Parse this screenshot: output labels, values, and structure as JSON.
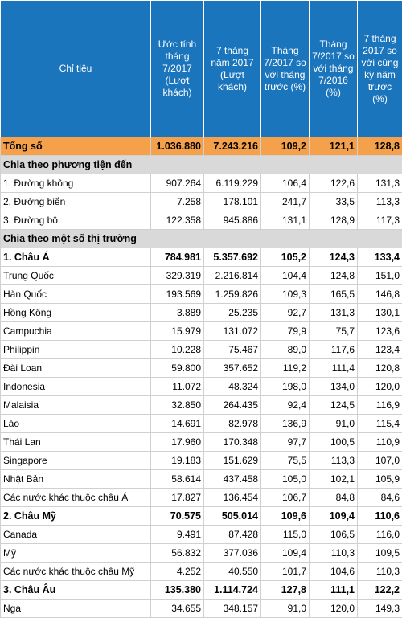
{
  "table": {
    "headers": [
      "Chỉ tiêu",
      "Ước tính tháng 7/2017 (Lượt khách)",
      "7 tháng năm 2017 (Lượt khách)",
      "Tháng 7/2017 so với tháng trước (%)",
      "Tháng 7/2017 so với tháng 7/2016 (%)",
      "7 tháng 2017 so với cùng kỳ năm trước (%)"
    ],
    "rows": [
      {
        "kind": "total",
        "cells": [
          "Tổng số",
          "1.036.880",
          "7.243.216",
          "109,2",
          "121,1",
          "128,8"
        ]
      },
      {
        "kind": "section",
        "cells": [
          "Chia theo phương tiện đến"
        ]
      },
      {
        "kind": "row",
        "cells": [
          "1. Đường không",
          "907.264",
          "6.119.229",
          "106,4",
          "122,6",
          "131,3"
        ]
      },
      {
        "kind": "row",
        "cells": [
          "2. Đường biển",
          "7.258",
          "178.101",
          "241,7",
          "33,5",
          "113,3"
        ]
      },
      {
        "kind": "row",
        "cells": [
          "3. Đường bộ",
          "122.358",
          "945.886",
          "131,1",
          "128,9",
          "117,3"
        ]
      },
      {
        "kind": "section",
        "cells": [
          "Chia theo một số thị trường"
        ]
      },
      {
        "kind": "region",
        "cells": [
          "1. Châu Á",
          "784.981",
          "5.357.692",
          "105,2",
          "124,3",
          "133,4"
        ]
      },
      {
        "kind": "row",
        "cells": [
          "Trung Quốc",
          "329.319",
          "2.216.814",
          "104,4",
          "124,8",
          "151,0"
        ]
      },
      {
        "kind": "row",
        "cells": [
          "Hàn Quốc",
          "193.569",
          "1.259.826",
          "109,3",
          "165,5",
          "146,8"
        ]
      },
      {
        "kind": "row",
        "cells": [
          "Hồng Kông",
          "3.889",
          "25.235",
          "92,7",
          "131,3",
          "130,1"
        ]
      },
      {
        "kind": "row",
        "cells": [
          "Campuchia",
          "15.979",
          "131.072",
          "79,9",
          "75,7",
          "123,6"
        ]
      },
      {
        "kind": "row",
        "cells": [
          "Philippin",
          "10.228",
          "75.467",
          "89,0",
          "117,6",
          "123,4"
        ]
      },
      {
        "kind": "row",
        "cells": [
          "Đài Loan",
          "59.800",
          "357.652",
          "119,2",
          "111,4",
          "120,8"
        ]
      },
      {
        "kind": "row",
        "cells": [
          "Indonesia",
          "11.072",
          "48.324",
          "198,0",
          "134,0",
          "120,0"
        ]
      },
      {
        "kind": "row",
        "cells": [
          "Malaisia",
          "32.850",
          "264.435",
          "92,4",
          "124,5",
          "116,9"
        ]
      },
      {
        "kind": "row",
        "cells": [
          "Lào",
          "14.691",
          "82.978",
          "136,9",
          "91,0",
          "115,4"
        ]
      },
      {
        "kind": "row",
        "cells": [
          "Thái Lan",
          "17.960",
          "170.348",
          "97,7",
          "100,5",
          "110,9"
        ]
      },
      {
        "kind": "row",
        "cells": [
          "Singapore",
          "19.183",
          "151.629",
          "75,5",
          "113,3",
          "107,0"
        ]
      },
      {
        "kind": "row",
        "cells": [
          "Nhật Bản",
          "58.614",
          "437.458",
          "105,0",
          "102,1",
          "105,9"
        ]
      },
      {
        "kind": "row",
        "cells": [
          "Các nước khác thuộc châu Á",
          "17.827",
          "136.454",
          "106,7",
          "84,8",
          "84,6"
        ]
      },
      {
        "kind": "region",
        "cells": [
          "2. Châu Mỹ",
          "70.575",
          "505.014",
          "109,6",
          "109,4",
          "110,6"
        ]
      },
      {
        "kind": "row",
        "cells": [
          "Canada",
          "9.491",
          "87.428",
          "115,0",
          "106,5",
          "116,0"
        ]
      },
      {
        "kind": "row",
        "cells": [
          "Mỹ",
          "56.832",
          "377.036",
          "109,4",
          "110,3",
          "109,5"
        ]
      },
      {
        "kind": "row",
        "cells": [
          "Các nước khác thuộc châu Mỹ",
          "4.252",
          "40.550",
          "101,7",
          "104,6",
          "110,3"
        ]
      },
      {
        "kind": "region",
        "cells": [
          "3. Châu Âu",
          "135.380",
          "1.114.724",
          "127,8",
          "111,1",
          "122,2"
        ]
      },
      {
        "kind": "row",
        "cells": [
          "Nga",
          "34.655",
          "348.157",
          "91,0",
          "120,0",
          "149,3"
        ]
      }
    ]
  }
}
